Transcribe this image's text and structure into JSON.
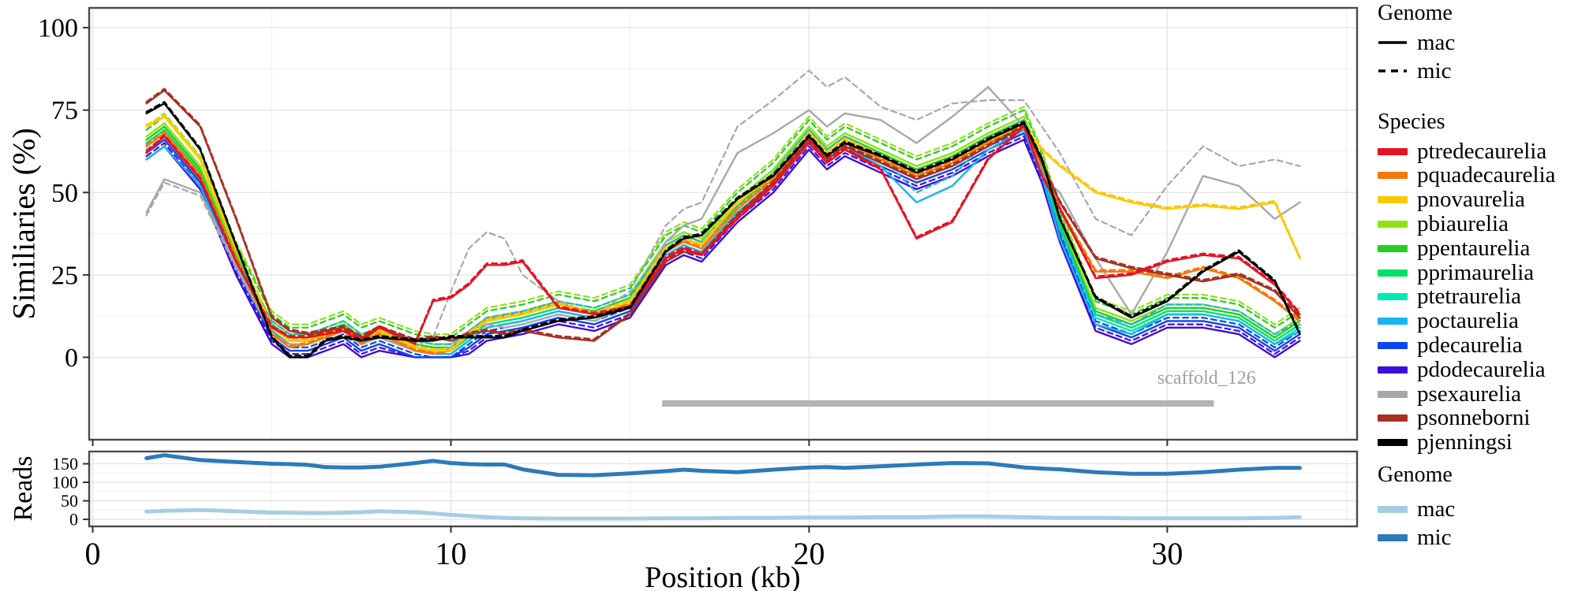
{
  "x_axis": {
    "title": "Position (kb)",
    "tick_labels": [
      "0",
      "10",
      "20",
      "30"
    ],
    "tick_values": [
      0,
      10,
      20,
      30
    ]
  },
  "legend": {
    "genome": {
      "title": "Genome",
      "items": [
        {
          "label": "mac",
          "style": "solid"
        },
        {
          "label": "mic",
          "style": "dashed"
        }
      ]
    },
    "species": {
      "title": "Species",
      "items": [
        {
          "label": "ptredecaurelia",
          "color": "#e81123"
        },
        {
          "label": "pquadecaurelia",
          "color": "#f5790a"
        },
        {
          "label": "pnovaurelia",
          "color": "#fbc902"
        },
        {
          "label": "pbiaurelia",
          "color": "#8fe412"
        },
        {
          "label": "ppentaurelia",
          "color": "#22cf22"
        },
        {
          "label": "pprimaurelia",
          "color": "#00e266"
        },
        {
          "label": "ptetraurelia",
          "color": "#00e8b8"
        },
        {
          "label": "poctaurelia",
          "color": "#18b5f0"
        },
        {
          "label": "pdecaurelia",
          "color": "#0d45ee"
        },
        {
          "label": "pdodecaurelia",
          "color": "#3f0ce0"
        },
        {
          "label": "psexaurelia",
          "color": "#a8a8a8"
        },
        {
          "label": "psonneborni",
          "color": "#a63022"
        },
        {
          "label": "pjenningsi",
          "color": "#000000"
        }
      ]
    },
    "reads_genome": {
      "title": "Genome",
      "items": [
        {
          "label": "mac",
          "color": "#a6cee3"
        },
        {
          "label": "mic",
          "color": "#2b7bba"
        }
      ]
    }
  },
  "chart_data": [
    {
      "type": "line",
      "panel": "similarity",
      "ylabel": "Similiaries (%)",
      "xlabel": "Position (kb)",
      "ylim": [
        -25,
        106
      ],
      "xlim": [
        -0.1,
        35.3
      ],
      "y_ticks": [
        0,
        25,
        50,
        75,
        100
      ],
      "y_minor": [
        12.5,
        37.5,
        62.5,
        87.5
      ],
      "x_ticks": [
        0,
        10,
        20,
        30
      ],
      "x_minor": [
        5,
        15,
        25,
        35
      ],
      "grid": true,
      "legend_position": "right",
      "genome_styles": {
        "mac": "solid",
        "mic": "dashed"
      },
      "x": [
        1.5,
        2,
        3,
        4,
        5,
        5.5,
        6,
        6.5,
        7,
        7.5,
        8,
        9,
        9.5,
        10,
        10.5,
        11,
        11.5,
        12,
        13,
        14,
        15,
        16,
        16.5,
        17,
        18,
        19,
        20,
        20.5,
        21,
        22,
        23,
        24,
        25,
        26,
        26.5,
        27,
        28,
        29,
        30,
        31,
        32,
        33,
        33.7
      ],
      "base": [
        65,
        69,
        56,
        30,
        9,
        5,
        5,
        7,
        9,
        5,
        7,
        3,
        2,
        2,
        6,
        10,
        11,
        12,
        15,
        13,
        17,
        33,
        36,
        34,
        46,
        55,
        68,
        62,
        66,
        61,
        56,
        60,
        66,
        71,
        58,
        40,
        13,
        9,
        14,
        14,
        12,
        5,
        10
      ],
      "species": [
        {
          "name": "ptredecaurelia",
          "color": "#e81123",
          "offset": 0,
          "mic_delta": 0.5,
          "mac": [
            62,
            67,
            54,
            29,
            9,
            6,
            6,
            7,
            8,
            5,
            9,
            4,
            17,
            18,
            22,
            28,
            28,
            29,
            15,
            13,
            15,
            30,
            33,
            31,
            42,
            52,
            65,
            59,
            63,
            57,
            36,
            41,
            60,
            70,
            55,
            45,
            24,
            25,
            29,
            31,
            30,
            22,
            13
          ],
          "mic": null
        },
        {
          "name": "pquadecaurelia",
          "color": "#f5790a",
          "offset": 0,
          "mic_delta": 0.5,
          "mac": [
            64,
            68,
            55,
            30,
            7,
            3,
            4,
            6,
            8,
            4,
            7,
            2,
            1,
            2,
            7,
            11,
            12,
            13,
            16,
            13,
            16,
            32,
            35,
            33,
            45,
            54,
            67,
            61,
            65,
            60,
            55,
            59,
            65,
            70,
            58,
            45,
            26,
            26,
            24,
            27,
            24,
            17,
            11
          ],
          "mic": null
        },
        {
          "name": "pnovaurelia",
          "color": "#fbc902",
          "offset": 0,
          "mic_delta": 0.5,
          "mac": [
            70,
            73,
            60,
            33,
            9,
            5,
            5,
            7,
            9,
            5,
            8,
            3,
            2,
            2,
            7,
            11,
            12,
            13,
            16,
            13,
            17,
            33,
            36,
            34,
            47,
            55,
            68,
            62,
            66,
            61,
            56,
            60,
            66,
            70,
            63,
            58,
            50,
            47,
            45,
            46,
            45,
            47,
            30
          ],
          "mic": null
        },
        {
          "name": "pbiaurelia",
          "color": "#8fe412",
          "offset": 2,
          "mic_delta": 3,
          "mac": null,
          "mic": null
        },
        {
          "name": "ppentaurelia",
          "color": "#22cf22",
          "offset": 1,
          "mic_delta": 3,
          "mac": null,
          "mic": null
        },
        {
          "name": "pprimaurelia",
          "color": "#00e266",
          "offset": 0,
          "mic_delta": 2,
          "mac": null,
          "mic": null
        },
        {
          "name": "ptetraurelia",
          "color": "#00e8b8",
          "offset": -1,
          "mic_delta": 2,
          "mac": null,
          "mic": null
        },
        {
          "name": "poctaurelia",
          "color": "#18b5f0",
          "offset": 0,
          "mic_delta": 3,
          "mac": [
            60,
            64,
            52,
            27,
            8,
            4,
            4,
            6,
            8,
            4,
            6,
            2,
            1,
            1,
            5,
            9,
            10,
            11,
            14,
            12,
            16,
            31,
            34,
            32,
            44,
            53,
            66,
            60,
            64,
            58,
            47,
            52,
            63,
            69,
            55,
            36,
            10,
            7,
            13,
            13,
            11,
            4,
            8
          ],
          "mic": null
        },
        {
          "name": "pdecaurelia",
          "color": "#0d45ee",
          "offset": -3,
          "mic_delta": 1,
          "mac": null,
          "mic": null
        },
        {
          "name": "pdodecaurelia",
          "color": "#3f0ce0",
          "offset": -5,
          "mic_delta": 1,
          "mac": null,
          "mic": null
        },
        {
          "name": "psexaurelia",
          "color": "#a8a8a8",
          "offset": 0,
          "mic_delta": 0,
          "mac": [
            44,
            54,
            50,
            28,
            7,
            4,
            4,
            6,
            8,
            4,
            6,
            2,
            2,
            3,
            8,
            10,
            9,
            10,
            13,
            11,
            16,
            35,
            40,
            42,
            62,
            68,
            75,
            70,
            74,
            72,
            65,
            73,
            82,
            70,
            55,
            50,
            30,
            13,
            32,
            55,
            52,
            42,
            47
          ],
          "mic": [
            43,
            53,
            49,
            27,
            7,
            4,
            4,
            6,
            8,
            5,
            7,
            3,
            6,
            20,
            33,
            38,
            36,
            25,
            17,
            13,
            20,
            40,
            45,
            47,
            70,
            78,
            87,
            82,
            85,
            76,
            72,
            77,
            78,
            78,
            70,
            62,
            42,
            37,
            52,
            64,
            58,
            60,
            58
          ]
        },
        {
          "name": "psonneborni",
          "color": "#a63022",
          "offset": 0,
          "mic_delta": 0.5,
          "mac": [
            77,
            81,
            70,
            42,
            12,
            8,
            7,
            8,
            9,
            6,
            9,
            5,
            6,
            5,
            7,
            8,
            7,
            8,
            6,
            5,
            13,
            29,
            32,
            31,
            43,
            53,
            66,
            60,
            64,
            59,
            54,
            58,
            64,
            70,
            59,
            47,
            30,
            27,
            25,
            23,
            25,
            20,
            12
          ],
          "mic": null
        },
        {
          "name": "pjenningsi",
          "color": "#000000",
          "offset": 0,
          "mic_delta": 0.5,
          "mac": [
            74,
            77,
            63,
            34,
            6,
            0,
            0,
            5,
            6,
            5,
            6,
            5,
            5,
            6,
            6,
            6,
            6,
            8,
            11,
            12,
            15,
            32,
            36,
            37,
            48,
            55,
            67,
            61,
            65,
            61,
            56,
            60,
            66,
            71,
            60,
            42,
            18,
            12,
            17,
            26,
            32,
            23,
            7
          ],
          "mic": null
        }
      ],
      "annotation": {
        "label": "scaffold_126",
        "bar_x0": 15.9,
        "bar_x1": 31.3,
        "bar_y": -14,
        "label_x": 31.1,
        "label_y": -8,
        "bar_color": "#b3b3b3",
        "label_color": "#a0a0a0"
      }
    },
    {
      "type": "line",
      "panel": "reads",
      "ylabel": "Reads",
      "ylim": [
        -19,
        183
      ],
      "y_ticks": [
        0,
        50,
        100,
        150
      ],
      "y_minor": [
        25,
        75,
        125,
        175
      ],
      "x_ticks": [
        0,
        10,
        20,
        30
      ],
      "x_minor": [
        5,
        15,
        25,
        35
      ],
      "series": [
        {
          "name": "mac",
          "color": "#a6cee3",
          "values": [
            21,
            23,
            25,
            22,
            18,
            18,
            17,
            17,
            18,
            19,
            22,
            19,
            16,
            12,
            9,
            6,
            4,
            3,
            2,
            2,
            2,
            3,
            3,
            3,
            4,
            4,
            5,
            5,
            5,
            6,
            6,
            8,
            8,
            6,
            5,
            4,
            4,
            3,
            3,
            3,
            3,
            4,
            6
          ]
        },
        {
          "name": "mic",
          "color": "#2b7bba",
          "values": [
            165,
            173,
            160,
            155,
            150,
            149,
            147,
            141,
            140,
            140,
            142,
            152,
            158,
            152,
            149,
            148,
            148,
            135,
            120,
            119,
            124,
            130,
            134,
            131,
            127,
            134,
            140,
            141,
            139,
            143,
            148,
            152,
            151,
            140,
            137,
            135,
            127,
            123,
            123,
            127,
            134,
            139,
            139
          ]
        }
      ]
    }
  ]
}
